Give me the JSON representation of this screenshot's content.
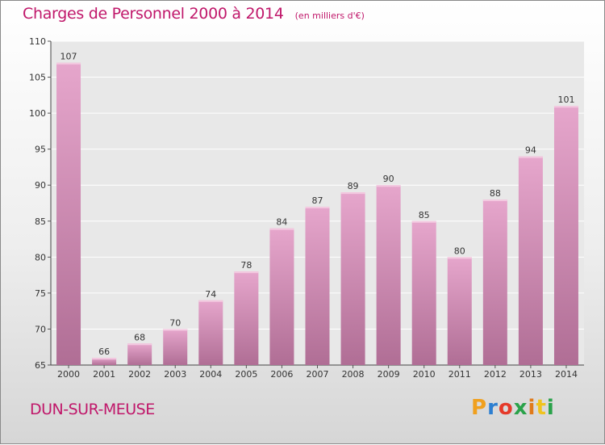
{
  "header": {
    "title": "Charges de Personnel 2000 à 2014",
    "subtitle": "(en milliers d'€)"
  },
  "footer": {
    "commune": "DUN-SUR-MEUSE",
    "logo_letters": [
      "P",
      "r",
      "o",
      "x",
      "i",
      "t",
      "i"
    ],
    "logo_colors": [
      "#f0a01e",
      "#2d7fd1",
      "#e53a2a",
      "#2aa24a",
      "#e07a1a",
      "#f0c31e",
      "#2aa24a"
    ]
  },
  "colors": {
    "bar_top": "#e6a6cc",
    "bar_bottom": "#b06e95",
    "plot_bg": "#e8e8e8",
    "grid": "#ffffff",
    "title": "#c0176a"
  },
  "chart_data": {
    "type": "bar",
    "categories": [
      "2000",
      "2001",
      "2002",
      "2003",
      "2004",
      "2005",
      "2006",
      "2007",
      "2008",
      "2009",
      "2010",
      "2011",
      "2012",
      "2013",
      "2014"
    ],
    "values": [
      107,
      66,
      68,
      70,
      74,
      78,
      84,
      87,
      89,
      90,
      85,
      80,
      88,
      94,
      101
    ],
    "ylim": [
      65,
      110
    ],
    "yticks": [
      65,
      70,
      75,
      80,
      85,
      90,
      95,
      100,
      105,
      110
    ],
    "grid": true,
    "legend": "none"
  }
}
